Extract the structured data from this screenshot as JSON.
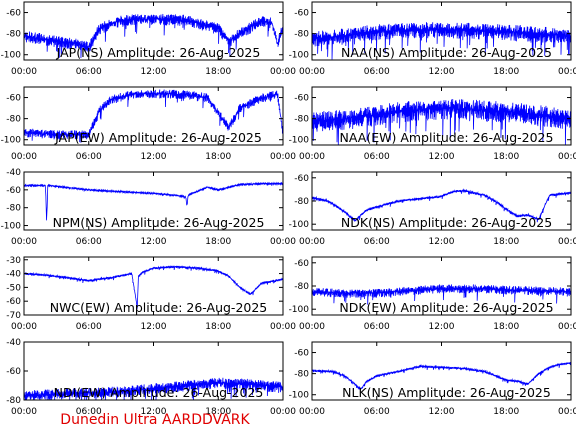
{
  "footer": "Dunedin Ultra AARDDVARK",
  "colors": {
    "trace": "#0000ff",
    "axis": "#000000",
    "footer": "#e00000"
  },
  "chart_data": [
    {
      "type": "line",
      "title": "JAP(NS) Amplitude: 26-Aug-2025",
      "x_ticks": [
        "00:00",
        "06:00",
        "12:00",
        "18:00",
        "00:00"
      ],
      "ylim": [
        -105,
        -50
      ],
      "y_ticks": [
        -60,
        -80,
        -100
      ],
      "x": [
        0,
        3,
        5,
        6,
        7,
        9,
        12,
        15,
        18,
        19,
        20,
        21,
        22,
        23,
        23.5,
        24
      ],
      "series": [
        {
          "values": [
            -82,
            -87,
            -90,
            -93,
            -75,
            -67,
            -66,
            -67,
            -75,
            -87,
            -80,
            -74,
            -68,
            -70,
            -90,
            -73
          ]
        }
      ],
      "noise": 10
    },
    {
      "type": "line",
      "title": "NAA(NS) Amplitude: 26-Aug-2025",
      "x_ticks": [
        "00:00",
        "06:00",
        "12:00",
        "18:00",
        "00:00"
      ],
      "ylim": [
        -105,
        -50
      ],
      "y_ticks": [
        -60,
        -80,
        -100
      ],
      "x": [
        0,
        3,
        6,
        9,
        12,
        15,
        18,
        21,
        24
      ],
      "series": [
        {
          "values": [
            -85,
            -82,
            -78,
            -76,
            -76,
            -77,
            -78,
            -80,
            -82
          ]
        }
      ],
      "noise": 14
    },
    {
      "type": "line",
      "title": "JAP(EW) Amplitude: 26-Aug-2025",
      "x_ticks": [
        "00:00",
        "06:00",
        "12:00",
        "18:00",
        "00:00"
      ],
      "ylim": [
        -105,
        -50
      ],
      "y_ticks": [
        -60,
        -80,
        -100
      ],
      "x": [
        0,
        3,
        6,
        7,
        8,
        10,
        12,
        15,
        17,
        18,
        19,
        20,
        22,
        23.5,
        24
      ],
      "series": [
        {
          "values": [
            -93,
            -95,
            -95,
            -72,
            -62,
            -57,
            -56,
            -57,
            -60,
            -75,
            -88,
            -70,
            -60,
            -57,
            -95
          ]
        }
      ],
      "noise": 8
    },
    {
      "type": "line",
      "title": "NAA(EW) Amplitude: 26-Aug-2025",
      "x_ticks": [
        "00:00",
        "06:00",
        "12:00",
        "18:00",
        "00:00"
      ],
      "ylim": [
        -105,
        -50
      ],
      "y_ticks": [
        -60,
        -80,
        -100
      ],
      "x": [
        0,
        3,
        6,
        9,
        12,
        15,
        18,
        21,
        24
      ],
      "series": [
        {
          "values": [
            -82,
            -80,
            -76,
            -72,
            -70,
            -71,
            -73,
            -76,
            -80
          ]
        }
      ],
      "noise": 18
    },
    {
      "type": "line",
      "title": "NPM(NS) Amplitude: 26-Aug-2025",
      "x_ticks": [
        "00:00",
        "06:00",
        "12:00",
        "18:00",
        "00:00"
      ],
      "ylim": [
        -105,
        -40
      ],
      "y_ticks": [
        -40,
        -60,
        -80,
        -100
      ],
      "x": [
        0,
        2,
        2.1,
        2.2,
        3,
        6,
        9,
        12,
        14,
        15,
        15.1,
        15.2,
        17,
        18,
        20,
        22,
        24
      ],
      "series": [
        {
          "values": [
            -55,
            -55,
            -100,
            -55,
            -56,
            -60,
            -62,
            -64,
            -66,
            -68,
            -80,
            -66,
            -57,
            -60,
            -54,
            -53,
            -53
          ]
        }
      ],
      "noise": 1.5
    },
    {
      "type": "line",
      "title": "NDK(NS) Amplitude: 26-Aug-2025",
      "x_ticks": [
        "00:00",
        "06:00",
        "12:00",
        "18:00",
        "00:00"
      ],
      "ylim": [
        -105,
        -55
      ],
      "y_ticks": [
        -60,
        -80,
        -100
      ],
      "x": [
        0,
        1.5,
        3,
        4,
        5,
        6,
        8,
        10,
        12,
        13,
        14,
        16,
        17,
        18,
        19,
        20,
        21,
        22,
        24
      ],
      "series": [
        {
          "values": [
            -77,
            -80,
            -89,
            -97,
            -88,
            -85,
            -80,
            -78,
            -76,
            -72,
            -71,
            -75,
            -80,
            -87,
            -93,
            -92,
            -96,
            -75,
            -73
          ]
        }
      ],
      "noise": 2
    },
    {
      "type": "line",
      "title": "NWC(EW) Amplitude: 26-Aug-2025",
      "x_ticks": [
        "00:00",
        "06:00",
        "12:00",
        "18:00",
        "00:00"
      ],
      "ylim": [
        -70,
        -28
      ],
      "y_ticks": [
        -30,
        -40,
        -50,
        -60,
        -70
      ],
      "x": [
        0,
        2,
        4,
        6,
        8,
        10,
        10.5,
        10.6,
        11,
        12,
        14,
        16,
        18,
        19,
        20,
        21,
        22,
        24
      ],
      "series": [
        {
          "values": [
            -40,
            -41,
            -43,
            -45,
            -43,
            -40,
            -65,
            -42,
            -39,
            -36,
            -35,
            -36,
            -38,
            -42,
            -50,
            -55,
            -47,
            -44
          ]
        }
      ],
      "noise": 1.5
    },
    {
      "type": "line",
      "title": "NDK(EW) Amplitude: 26-Aug-2025",
      "x_ticks": [
        "00:00",
        "06:00",
        "12:00",
        "18:00",
        "00:00"
      ],
      "ylim": [
        -105,
        -55
      ],
      "y_ticks": [
        -60,
        -80,
        -100
      ],
      "x": [
        0,
        3,
        6,
        9,
        12,
        15,
        18,
        21,
        24
      ],
      "series": [
        {
          "values": [
            -85,
            -86,
            -86,
            -84,
            -82,
            -82,
            -83,
            -84,
            -85
          ]
        }
      ],
      "noise": 7
    },
    {
      "type": "line",
      "title": "NDI(EW) Amplitude: 26-Aug-2025",
      "x_ticks": [
        "00:00",
        "06:00",
        "12:00",
        "18:00",
        "00:00"
      ],
      "ylim": [
        -80,
        -40
      ],
      "y_ticks": [
        -40,
        -60,
        -80
      ],
      "x": [
        0,
        3,
        6,
        9,
        12,
        15,
        18,
        21,
        24
      ],
      "series": [
        {
          "values": [
            -77,
            -76,
            -75,
            -74,
            -72,
            -70,
            -68,
            -69,
            -71
          ]
        }
      ],
      "noise": 7
    },
    {
      "type": "line",
      "title": "NLK(NS) Amplitude: 26-Aug-2025",
      "x_ticks": [
        "00:00",
        "06:00",
        "12:00",
        "18:00",
        "00:00"
      ],
      "ylim": [
        -105,
        -50
      ],
      "y_ticks": [
        -60,
        -80,
        -100
      ],
      "x": [
        0,
        2,
        3,
        4,
        4.5,
        5,
        6,
        8,
        10,
        12,
        14,
        16,
        17,
        18,
        19,
        20,
        21,
        22,
        23,
        24
      ],
      "series": [
        {
          "values": [
            -77,
            -78,
            -82,
            -90,
            -95,
            -88,
            -82,
            -78,
            -73,
            -74,
            -75,
            -78,
            -82,
            -86,
            -87,
            -90,
            -80,
            -74,
            -71,
            -70
          ]
        }
      ],
      "noise": 2
    }
  ]
}
